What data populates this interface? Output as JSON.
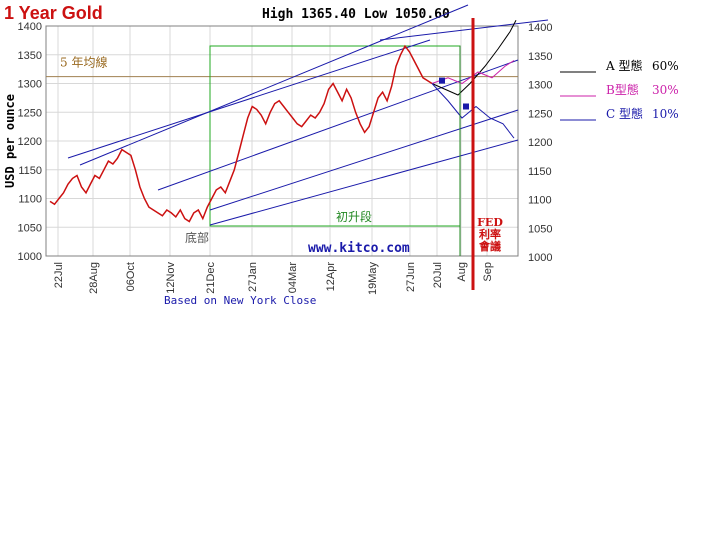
{
  "chart_data": {
    "type": "line",
    "title": "1 Year Gold",
    "header_stats": "High 1365.40 Low 1050.60",
    "ylabel": "USD per ounce",
    "xlabel": "Based on New York Close",
    "watermark": "www.kitco.com",
    "ylim": [
      1000,
      1400
    ],
    "yticks": [
      1000,
      1050,
      1100,
      1150,
      1200,
      1250,
      1300,
      1350,
      1400
    ],
    "x_ticks": [
      "22Jul",
      "28Aug",
      "06Oct",
      "12Nov",
      "21Dec",
      "27Jan",
      "04Mar",
      "12Apr",
      "19May",
      "27Jun",
      "20Jul",
      "Aug",
      "Sep"
    ],
    "grid": true,
    "series": [
      {
        "values": [
          1095,
          1090,
          1100,
          1110,
          1125,
          1135,
          1140,
          1120,
          1110,
          1125,
          1140,
          1135,
          1150,
          1165,
          1160,
          1170,
          1185,
          1180,
          1175,
          1150,
          1120,
          1100,
          1085,
          1080,
          1075,
          1070,
          1080,
          1075,
          1068,
          1080,
          1065,
          1060,
          1075,
          1080,
          1065,
          1085,
          1100,
          1115,
          1120,
          1110,
          1130,
          1150,
          1180,
          1210,
          1240,
          1260,
          1255,
          1245,
          1230,
          1250,
          1265,
          1270,
          1260,
          1250,
          1240,
          1230,
          1225,
          1235,
          1245,
          1240,
          1250,
          1265,
          1290,
          1300,
          1285,
          1270,
          1290,
          1275,
          1250,
          1230,
          1215,
          1225,
          1250,
          1275,
          1285,
          1270,
          1295,
          1330,
          1350,
          1365,
          1355,
          1340,
          1325,
          1310,
          1305,
          1300
        ]
      },
      {
        "name": "5 年均線",
        "values": [
          1312
        ]
      }
    ],
    "annotations": [
      "5 年均線",
      "初升段",
      "底部",
      "FED 利率會議"
    ],
    "scenarios": [
      {
        "label": "A 型態",
        "prob": "60%",
        "color": "#000000"
      },
      {
        "label": "B型態",
        "prob": "30%",
        "color": "#cc22aa"
      },
      {
        "label": "C 型態",
        "prob": "10%",
        "color": "#1a1aaa"
      }
    ],
    "colors": {
      "price": "#cc1111",
      "channel": "#1a1aaa",
      "box": "#22aa22",
      "ma": "#a08050",
      "fed_line": "#cc1111",
      "frame": "#808080"
    }
  }
}
